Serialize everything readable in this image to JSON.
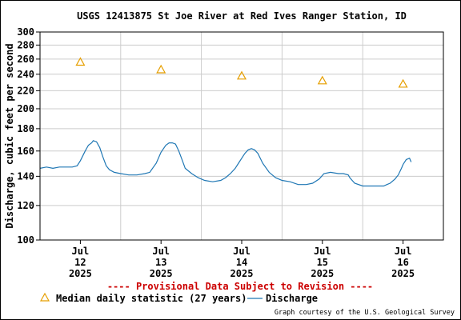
{
  "chart_data": {
    "type": "line",
    "title": "USGS 12413875 St Joe River at Red Ives Ranger Station, ID",
    "ylabel": "Discharge, cubic feet per second",
    "xlabel": "",
    "y_scale": "log",
    "ylim": [
      100,
      300
    ],
    "y_ticks": [
      100,
      120,
      140,
      160,
      180,
      200,
      220,
      240,
      260,
      280,
      300
    ],
    "y_tick_labels": [
      "100",
      "120",
      "140",
      "160",
      "180",
      "200",
      "220",
      "240",
      "260",
      "280",
      "300"
    ],
    "xlim_days": [
      0,
      5
    ],
    "x_tick_positions": [
      0.5,
      1.5,
      2.5,
      3.5,
      4.5
    ],
    "x_tick_labels": [
      [
        "Jul",
        "12",
        "2025"
      ],
      [
        "Jul",
        "13",
        "2025"
      ],
      [
        "Jul",
        "14",
        "2025"
      ],
      [
        "Jul",
        "15",
        "2025"
      ],
      [
        "Jul",
        "16",
        "2025"
      ]
    ],
    "grid": true,
    "series": [
      {
        "name": "Discharge",
        "color": "#1f77b4",
        "style": "line",
        "x": [
          0.0,
          0.08,
          0.16,
          0.24,
          0.32,
          0.4,
          0.46,
          0.5,
          0.56,
          0.6,
          0.64,
          0.66,
          0.7,
          0.74,
          0.78,
          0.82,
          0.86,
          0.92,
          1.0,
          1.1,
          1.2,
          1.3,
          1.36,
          1.44,
          1.5,
          1.56,
          1.6,
          1.64,
          1.68,
          1.72,
          1.76,
          1.8,
          1.88,
          1.96,
          2.04,
          2.14,
          2.24,
          2.3,
          2.36,
          2.42,
          2.46,
          2.5,
          2.54,
          2.58,
          2.62,
          2.66,
          2.7,
          2.76,
          2.84,
          2.92,
          3.0,
          3.1,
          3.2,
          3.3,
          3.38,
          3.46,
          3.52,
          3.6,
          3.7,
          3.76,
          3.82,
          3.84,
          3.9,
          4.0,
          4.1,
          4.2,
          4.26,
          4.3,
          4.34,
          4.4,
          4.44,
          4.48,
          4.5,
          4.54,
          4.58,
          4.6
        ],
        "y": [
          146,
          147,
          146,
          147,
          147,
          147,
          148,
          152,
          160,
          165,
          167,
          169,
          168,
          163,
          155,
          148,
          145,
          143,
          142,
          141,
          141,
          142,
          143,
          150,
          159,
          165,
          167,
          167,
          166,
          160,
          153,
          146,
          142,
          139,
          137,
          136,
          137,
          139,
          142,
          146,
          150,
          154,
          158,
          161,
          162,
          161,
          158,
          150,
          143,
          139,
          137,
          136,
          134,
          134,
          135,
          138,
          142,
          143,
          142,
          142,
          141,
          139,
          135,
          133,
          133,
          133,
          133,
          134,
          135,
          138,
          141,
          146,
          149,
          153,
          154,
          151
        ]
      },
      {
        "name": "Median daily statistic (27 years)",
        "color": "#e69f00",
        "style": "triangle",
        "x": [
          0.5,
          1.5,
          2.5,
          3.5,
          4.5
        ],
        "y": [
          256,
          246,
          238,
          232,
          228
        ]
      }
    ],
    "legend_placement": "bottom",
    "annotations": [
      "---- Provisional Data Subject to Revision ----",
      "Graph courtesy of the U.S. Geological Survey"
    ]
  },
  "legend": {
    "median_label": "Median daily statistic (27 years)",
    "discharge_label": "Discharge"
  },
  "notice": "---- Provisional Data Subject to Revision ----",
  "credit": "Graph courtesy of the U.S. Geological Survey",
  "colors": {
    "notice": "#cc0000",
    "grid": "#cccccc",
    "discharge": "#1f77b4",
    "median": "#e69f00"
  }
}
